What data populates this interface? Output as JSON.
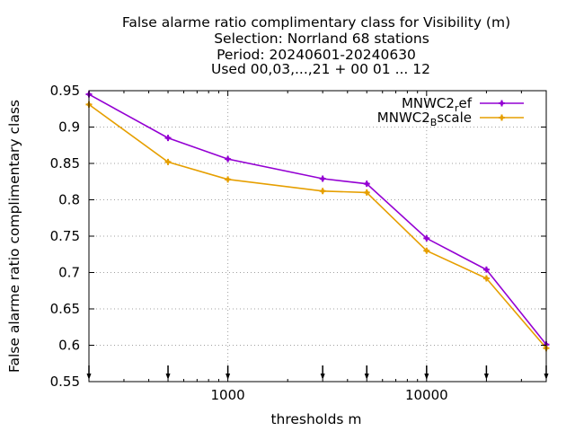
{
  "chart_data": {
    "type": "line",
    "title_lines": [
      "False alarme ratio complimentary class  for Visibility (m)",
      "Selection: Norrland     68 stations",
      "Period: 20240601-20240630",
      "Used 00,03,...,21 + 00 01 ... 12"
    ],
    "xlabel": "thresholds m",
    "ylabel": "False alarme ratio complimentary class",
    "x_scale": "log",
    "xlim": [
      200,
      40000
    ],
    "ylim": [
      0.55,
      0.95
    ],
    "x_ticks": [
      1000,
      10000
    ],
    "x_tick_labels": [
      "1000",
      "10000"
    ],
    "y_ticks": [
      0.55,
      0.6,
      0.65,
      0.7,
      0.75,
      0.8,
      0.85,
      0.9,
      0.95
    ],
    "y_tick_labels": [
      "0.55",
      "0.6",
      "0.65",
      "0.7",
      "0.75",
      "0.8",
      "0.85",
      "0.9",
      "0.95"
    ],
    "grid": true,
    "legend_position": "top-right",
    "threshold_markers_x": [
      200,
      500,
      1000,
      3000,
      5000,
      10000,
      20000,
      40000
    ],
    "series": [
      {
        "name": "MNWC2_ref",
        "legend_main": "MNWC2",
        "legend_sub": "r",
        "legend_rest": "ef",
        "color": "#9400d3",
        "x": [
          200,
          500,
          1000,
          3000,
          5000,
          10000,
          20000,
          40000
        ],
        "values": [
          0.945,
          0.885,
          0.856,
          0.829,
          0.822,
          0.747,
          0.704,
          0.601
        ]
      },
      {
        "name": "MNWC2_Bscale",
        "legend_main": "MNWC2",
        "legend_sub": "B",
        "legend_rest": "scale",
        "color": "#e69f00",
        "x": [
          200,
          500,
          1000,
          3000,
          5000,
          10000,
          20000,
          40000
        ],
        "values": [
          0.931,
          0.852,
          0.828,
          0.812,
          0.81,
          0.73,
          0.692,
          0.596
        ]
      }
    ]
  }
}
